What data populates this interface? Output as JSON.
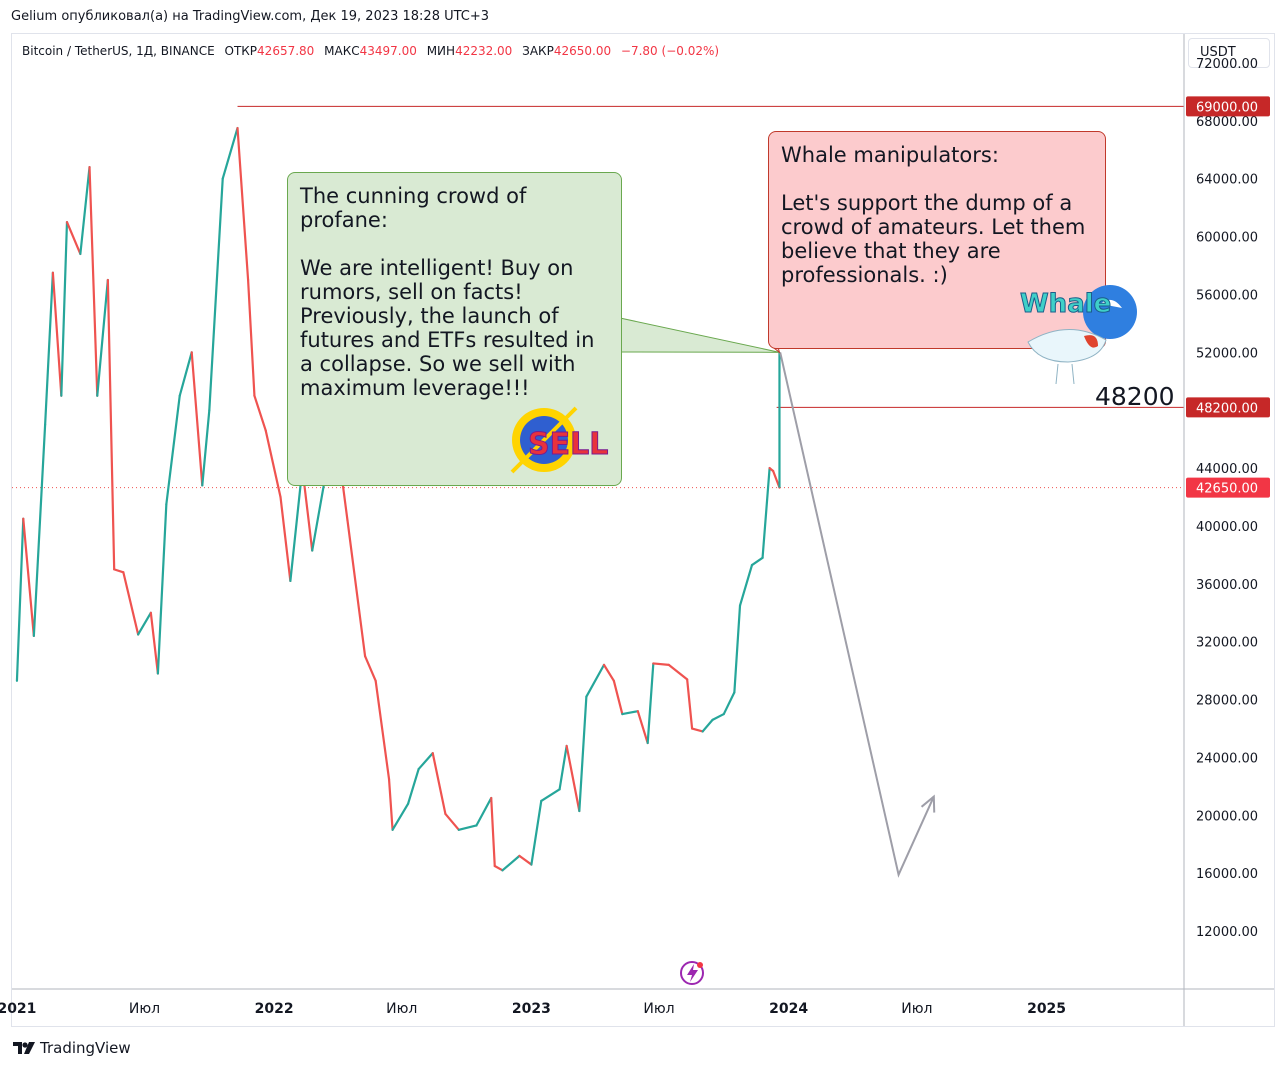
{
  "header": {
    "published_by": "Gelium опубликовал(а) на TradingView.com, Дек 19, 2023 18:28 UTC+3"
  },
  "symbol": {
    "name": "Bitcoin / TetherUS, 1Д, BINANCE",
    "open_label": "ОТКР",
    "open": "42657.80",
    "high_label": "МАКС",
    "high": "43497.00",
    "low_label": "МИН",
    "low": "42232.00",
    "close_label": "ЗАКР",
    "close": "42650.00",
    "change": "−7.80 (−0.02%)"
  },
  "currency": "USDT",
  "annotations": {
    "green_bubble": "The cunning crowd of profane:\n\nWe are intelligent! Buy on rumors, sell on facts! Previously, the launch of futures and ETFs resulted in a collapse. So we sell with maximum leverage!!!",
    "red_bubble": "Whale manipulators:\n\nLet's support the dump of a crowd of amateurs. Let them believe that they are professionals. :)",
    "level_note": "48200",
    "sell_logo": "SELL",
    "whale_logo": "Whale"
  },
  "colors": {
    "up": "#26a69a",
    "down": "#ef5350",
    "level_line": "#c62828",
    "price_line": "#ef5350",
    "arrow": "#9e9ea8",
    "green_bubble": "#d9ead3",
    "red_bubble": "#fccbcd"
  },
  "chart_data": {
    "type": "line",
    "ylim": [
      8000,
      74000
    ],
    "y_ticks": [
      "72000.00",
      "68000.00",
      "64000.00",
      "60000.00",
      "56000.00",
      "52000.00",
      "48000.00",
      "44000.00",
      "40000.00",
      "36000.00",
      "32000.00",
      "28000.00",
      "24000.00",
      "20000.00",
      "16000.00",
      "12000.00"
    ],
    "x_ticks": [
      "2021",
      "Июл",
      "2022",
      "Июл",
      "2023",
      "Июл",
      "2024",
      "Июл",
      "2025"
    ],
    "x_tick_dates": [
      "2021-01-01",
      "2021-07-01",
      "2022-01-01",
      "2022-07-01",
      "2023-01-01",
      "2023-07-01",
      "2024-01-01",
      "2024-07-01",
      "2025-01-01"
    ],
    "xlim": [
      "2020-12-25",
      "2025-07-15"
    ],
    "price_labels": [
      {
        "value": 69000,
        "text": "69000.00"
      },
      {
        "value": 48200,
        "text": "48200.00"
      },
      {
        "value": 42650,
        "text": "42650.00"
      }
    ],
    "level_lines": [
      69000,
      48200
    ],
    "current_price": 42650,
    "series": [
      {
        "dates": [
          "2021-01-01",
          "2021-01-10",
          "2021-01-25",
          "2021-02-10",
          "2021-02-21",
          "2021-03-05",
          "2021-03-13",
          "2021-04-01",
          "2021-04-14",
          "2021-04-25",
          "2021-05-10",
          "2021-05-19",
          "2021-06-01",
          "2021-06-22",
          "2021-07-10",
          "2021-07-20",
          "2021-08-01",
          "2021-08-20",
          "2021-09-06",
          "2021-09-21",
          "2021-10-01",
          "2021-10-20",
          "2021-11-10",
          "2021-11-25",
          "2021-12-04",
          "2021-12-20",
          "2022-01-10",
          "2022-01-24",
          "2022-02-10",
          "2022-02-24",
          "2022-03-28",
          "2022-04-15",
          "2022-05-10",
          "2022-05-25",
          "2022-06-13",
          "2022-06-18",
          "2022-07-10",
          "2022-07-25",
          "2022-08-14",
          "2022-09-01",
          "2022-09-20",
          "2022-10-15",
          "2022-11-05",
          "2022-11-10",
          "2022-11-21",
          "2022-12-15",
          "2023-01-01",
          "2023-01-15",
          "2023-02-10",
          "2023-02-20",
          "2023-03-10",
          "2023-03-20",
          "2023-04-14",
          "2023-04-28",
          "2023-05-10",
          "2023-06-01",
          "2023-06-15",
          "2023-06-23",
          "2023-07-15",
          "2023-08-10",
          "2023-08-17",
          "2023-09-01",
          "2023-09-15",
          "2023-10-01",
          "2023-10-16",
          "2023-10-24",
          "2023-11-10",
          "2023-11-25",
          "2023-12-05",
          "2023-12-10",
          "2023-12-19"
        ],
        "close": [
          29300,
          40500,
          32400,
          47000,
          57500,
          49000,
          61000,
          58800,
          64800,
          49000,
          57000,
          37000,
          36800,
          32500,
          34000,
          29800,
          41500,
          49000,
          52000,
          42800,
          48000,
          64000,
          67500,
          57000,
          49000,
          46600,
          42000,
          36200,
          44000,
          38300,
          47100,
          40400,
          31000,
          29300,
          22500,
          19000,
          20800,
          23200,
          24300,
          20100,
          19000,
          19300,
          21200,
          16500,
          16200,
          17200,
          16600,
          21000,
          21800,
          24800,
          20300,
          28200,
          30400,
          29300,
          27000,
          27200,
          25000,
          30500,
          30400,
          29400,
          26000,
          25800,
          26600,
          27000,
          28500,
          34500,
          37300,
          37800,
          44000,
          43800,
          42650
        ]
      }
    ],
    "projection": {
      "dates": [
        "2023-12-20",
        "2024-06-05",
        "2024-07-25"
      ],
      "values": [
        52000,
        15900,
        21300
      ]
    }
  }
}
